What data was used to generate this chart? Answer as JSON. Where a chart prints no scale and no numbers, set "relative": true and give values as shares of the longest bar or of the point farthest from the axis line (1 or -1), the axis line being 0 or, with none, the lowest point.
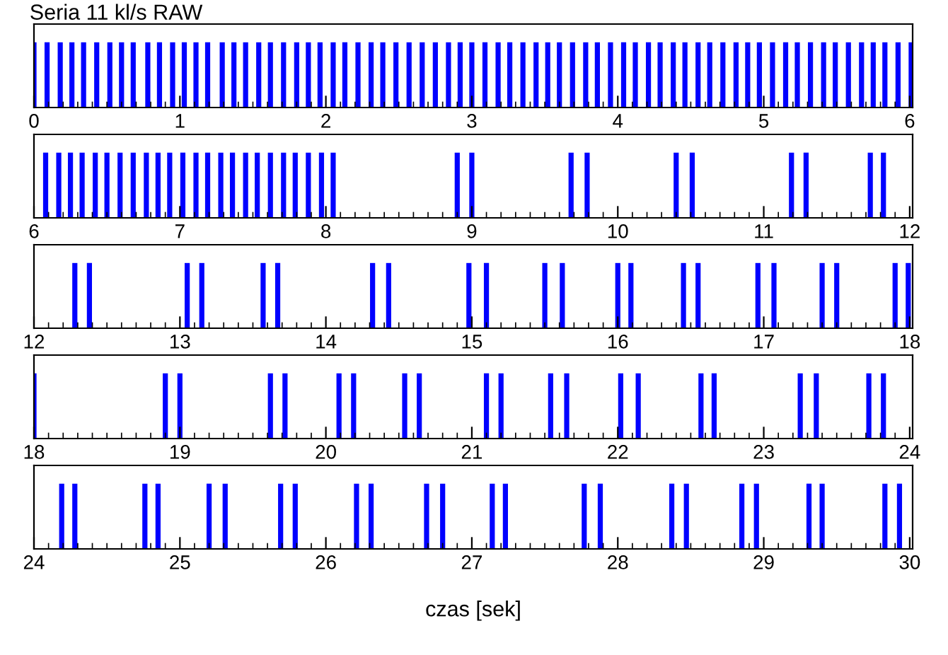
{
  "chart_data": [
    {
      "type": "bar",
      "title": "Seria 11 kl/s RAW",
      "relative": true,
      "color": "#0000ff",
      "tick_labels": "x",
      "xlim": [
        0,
        6.02
      ],
      "xticks": [
        0,
        1,
        2,
        3,
        4,
        5,
        6
      ],
      "x": [
        0.0,
        0.09,
        0.18,
        0.26,
        0.34,
        0.43,
        0.52,
        0.6,
        0.68,
        0.78,
        0.86,
        0.95,
        1.03,
        1.11,
        1.19,
        1.29,
        1.37,
        1.45,
        1.54,
        1.62,
        1.71,
        1.8,
        1.88,
        1.96,
        2.05,
        2.13,
        2.22,
        2.31,
        2.39,
        2.48,
        2.57,
        2.66,
        2.75,
        2.84,
        2.92,
        3.0,
        3.09,
        3.18,
        3.26,
        3.35,
        3.44,
        3.52,
        3.6,
        3.69,
        3.78,
        3.86,
        3.95,
        4.04,
        4.12,
        4.21,
        4.29,
        4.38,
        4.46,
        4.55,
        4.63,
        4.72,
        4.81,
        4.89,
        4.97,
        5.06,
        5.15,
        5.23,
        5.32,
        5.41,
        5.49,
        5.58,
        5.67,
        5.75,
        5.83,
        5.92,
        6.01
      ],
      "values": [
        1,
        1,
        1,
        1,
        1,
        1,
        1,
        1,
        1,
        1,
        1,
        1,
        1,
        1,
        1,
        1,
        1,
        1,
        1,
        1,
        1,
        1,
        1,
        1,
        1,
        1,
        1,
        1,
        1,
        1,
        1,
        1,
        1,
        1,
        1,
        1,
        1,
        1,
        1,
        1,
        1,
        1,
        1,
        1,
        1,
        1,
        1,
        1,
        1,
        1,
        1,
        1,
        1,
        1,
        1,
        1,
        1,
        1,
        1,
        1,
        1,
        1,
        1,
        1,
        1,
        1,
        1,
        1,
        1,
        1,
        1
      ]
    },
    {
      "type": "bar",
      "relative": true,
      "color": "#0000ff",
      "tick_labels": "x",
      "xlim": [
        6,
        12.02
      ],
      "xticks": [
        6,
        7,
        8,
        9,
        10,
        11,
        12
      ],
      "x": [
        6.08,
        6.17,
        6.25,
        6.33,
        6.42,
        6.5,
        6.59,
        6.68,
        6.77,
        6.85,
        6.93,
        7.02,
        7.11,
        7.19,
        7.28,
        7.36,
        7.45,
        7.53,
        7.62,
        7.71,
        7.79,
        7.88,
        7.97,
        8.05,
        8.9,
        9.0,
        9.68,
        9.79,
        10.4,
        10.51,
        11.19,
        11.29,
        11.73,
        11.82
      ],
      "values": [
        1,
        1,
        1,
        1,
        1,
        1,
        1,
        1,
        1,
        1,
        1,
        1,
        1,
        1,
        1,
        1,
        1,
        1,
        1,
        1,
        1,
        1,
        1,
        1,
        1,
        1,
        1,
        1,
        1,
        1,
        1,
        1,
        1,
        1
      ]
    },
    {
      "type": "bar",
      "relative": true,
      "color": "#0000ff",
      "tick_labels": "x",
      "xlim": [
        12,
        18.02
      ],
      "xticks": [
        12,
        13,
        14,
        15,
        16,
        17,
        18
      ],
      "x": [
        12.28,
        12.38,
        13.05,
        13.15,
        13.57,
        13.67,
        14.32,
        14.43,
        14.98,
        15.1,
        15.5,
        15.62,
        16.0,
        16.09,
        16.45,
        16.55,
        16.96,
        17.07,
        17.4,
        17.5,
        17.9,
        17.99
      ],
      "values": [
        1,
        1,
        1,
        1,
        1,
        1,
        1,
        1,
        1,
        1,
        1,
        1,
        1,
        1,
        1,
        1,
        1,
        1,
        1,
        1,
        1,
        1
      ]
    },
    {
      "type": "bar",
      "relative": true,
      "color": "#0000ff",
      "tick_labels": "x",
      "xlim": [
        18,
        24.02
      ],
      "xticks": [
        18,
        19,
        20,
        21,
        22,
        23,
        24
      ],
      "x": [
        18.0,
        18.9,
        19.0,
        19.62,
        19.72,
        20.09,
        20.19,
        20.54,
        20.64,
        21.1,
        21.2,
        21.54,
        21.65,
        22.02,
        22.14,
        22.57,
        22.66,
        23.25,
        23.36,
        23.72,
        23.82
      ],
      "values": [
        1,
        1,
        1,
        1,
        1,
        1,
        1,
        1,
        1,
        1,
        1,
        1,
        1,
        1,
        1,
        1,
        1,
        1,
        1,
        1,
        1
      ]
    },
    {
      "type": "bar",
      "relative": true,
      "color": "#0000ff",
      "tick_labels": "x",
      "xlim": [
        24,
        30.02
      ],
      "xticks": [
        24,
        25,
        26,
        27,
        28,
        29,
        30
      ],
      "xlabel": "czas [sek]",
      "x": [
        24.19,
        24.28,
        24.76,
        24.85,
        25.2,
        25.31,
        25.69,
        25.79,
        26.21,
        26.31,
        26.69,
        26.8,
        27.14,
        27.23,
        27.77,
        27.88,
        28.37,
        28.47,
        28.85,
        28.95,
        29.31,
        29.4,
        29.83,
        29.93
      ],
      "values": [
        1,
        1,
        1,
        1,
        1,
        1,
        1,
        1,
        1,
        1,
        1,
        1,
        1,
        1,
        1,
        1,
        1,
        1,
        1,
        1,
        1,
        1,
        1,
        1
      ]
    }
  ]
}
